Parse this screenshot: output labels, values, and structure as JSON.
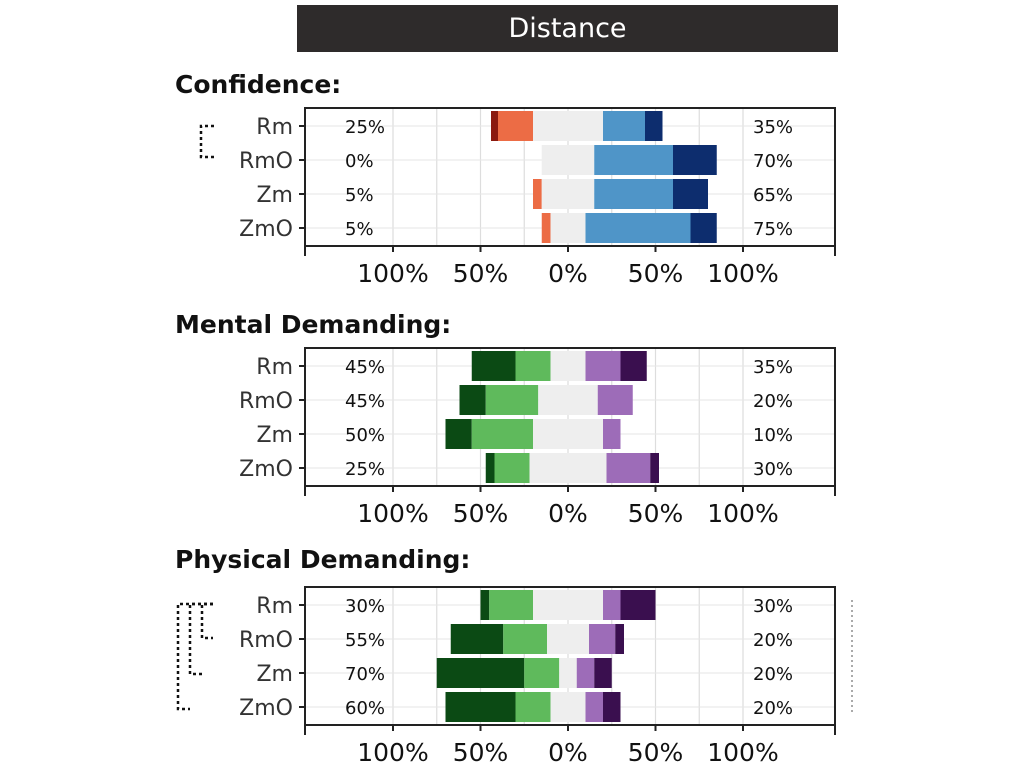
{
  "header": {
    "title": "Distance"
  },
  "chart_data": [
    {
      "type": "bar",
      "title": "Confidence:",
      "categories": [
        "Rm",
        "RmO",
        "Zm",
        "ZmO"
      ],
      "left_percent_labels": [
        "25%",
        "0%",
        "5%",
        "5%"
      ],
      "right_percent_labels": [
        "35%",
        "70%",
        "65%",
        "75%"
      ],
      "x_tick_labels": [
        "100%",
        "50%",
        "0%",
        "50%",
        "100%"
      ],
      "xlim": [
        -100,
        100
      ],
      "segment_colors": [
        "#8b1a10",
        "#ec6c45",
        "#eeeeee",
        "#4f95c8",
        "#0d2d6e"
      ],
      "segments": [
        [
          [
            -44,
            -40,
            "#8b1a10"
          ],
          [
            -40,
            -20,
            "#ec6c45"
          ],
          [
            -20,
            20,
            "#eeeeee"
          ],
          [
            20,
            44,
            "#4f95c8"
          ],
          [
            44,
            54,
            "#0d2d6e"
          ]
        ],
        [
          [
            -15,
            15,
            "#eeeeee"
          ],
          [
            15,
            60,
            "#4f95c8"
          ],
          [
            60,
            85,
            "#0d2d6e"
          ]
        ],
        [
          [
            -20,
            -15,
            "#ec6c45"
          ],
          [
            -15,
            15,
            "#eeeeee"
          ],
          [
            15,
            60,
            "#4f95c8"
          ],
          [
            60,
            80,
            "#0d2d6e"
          ]
        ],
        [
          [
            -15,
            -10,
            "#ec6c45"
          ],
          [
            -10,
            10,
            "#eeeeee"
          ],
          [
            10,
            70,
            "#4f95c8"
          ],
          [
            70,
            85,
            "#0d2d6e"
          ]
        ]
      ]
    },
    {
      "type": "bar",
      "title": "Mental Demanding:",
      "categories": [
        "Rm",
        "RmO",
        "Zm",
        "ZmO"
      ],
      "left_percent_labels": [
        "45%",
        "45%",
        "50%",
        "25%"
      ],
      "right_percent_labels": [
        "35%",
        "20%",
        "10%",
        "30%"
      ],
      "x_tick_labels": [
        "100%",
        "50%",
        "0%",
        "50%",
        "100%"
      ],
      "xlim": [
        -100,
        100
      ],
      "segment_colors": [
        "#0b4a14",
        "#5fba5c",
        "#eeeeee",
        "#9d6cb8",
        "#3a0f4f"
      ],
      "segments": [
        [
          [
            -55,
            -30,
            "#0b4a14"
          ],
          [
            -30,
            -10,
            "#5fba5c"
          ],
          [
            -10,
            10,
            "#eeeeee"
          ],
          [
            10,
            30,
            "#9d6cb8"
          ],
          [
            30,
            45,
            "#3a0f4f"
          ]
        ],
        [
          [
            -62,
            -47,
            "#0b4a14"
          ],
          [
            -47,
            -17,
            "#5fba5c"
          ],
          [
            -17,
            17,
            "#eeeeee"
          ],
          [
            17,
            37,
            "#9d6cb8"
          ]
        ],
        [
          [
            -70,
            -55,
            "#0b4a14"
          ],
          [
            -55,
            -20,
            "#5fba5c"
          ],
          [
            -20,
            20,
            "#eeeeee"
          ],
          [
            20,
            30,
            "#9d6cb8"
          ]
        ],
        [
          [
            -47,
            -42,
            "#0b4a14"
          ],
          [
            -42,
            -22,
            "#5fba5c"
          ],
          [
            -22,
            22,
            "#eeeeee"
          ],
          [
            22,
            47,
            "#9d6cb8"
          ],
          [
            47,
            52,
            "#3a0f4f"
          ]
        ]
      ]
    },
    {
      "type": "bar",
      "title": "Physical Demanding:",
      "categories": [
        "Rm",
        "RmO",
        "Zm",
        "ZmO"
      ],
      "left_percent_labels": [
        "30%",
        "55%",
        "70%",
        "60%"
      ],
      "right_percent_labels": [
        "30%",
        "20%",
        "20%",
        "20%"
      ],
      "x_tick_labels": [
        "100%",
        "50%",
        "0%",
        "50%",
        "100%"
      ],
      "xlim": [
        -100,
        100
      ],
      "segment_colors": [
        "#0b4a14",
        "#5fba5c",
        "#eeeeee",
        "#9d6cb8",
        "#3a0f4f"
      ],
      "segments": [
        [
          [
            -50,
            -45,
            "#0b4a14"
          ],
          [
            -45,
            -20,
            "#5fba5c"
          ],
          [
            -20,
            20,
            "#eeeeee"
          ],
          [
            20,
            30,
            "#9d6cb8"
          ],
          [
            30,
            50,
            "#3a0f4f"
          ]
        ],
        [
          [
            -67,
            -37,
            "#0b4a14"
          ],
          [
            -37,
            -12,
            "#5fba5c"
          ],
          [
            -12,
            12,
            "#eeeeee"
          ],
          [
            12,
            27,
            "#9d6cb8"
          ],
          [
            27,
            32,
            "#3a0f4f"
          ]
        ],
        [
          [
            -75,
            -25,
            "#0b4a14"
          ],
          [
            -25,
            -5,
            "#5fba5c"
          ],
          [
            -5,
            5,
            "#eeeeee"
          ],
          [
            5,
            15,
            "#9d6cb8"
          ],
          [
            15,
            25,
            "#3a0f4f"
          ]
        ],
        [
          [
            -70,
            -30,
            "#0b4a14"
          ],
          [
            -30,
            -10,
            "#5fba5c"
          ],
          [
            -10,
            10,
            "#eeeeee"
          ],
          [
            10,
            20,
            "#9d6cb8"
          ],
          [
            20,
            30,
            "#3a0f4f"
          ]
        ]
      ]
    }
  ]
}
